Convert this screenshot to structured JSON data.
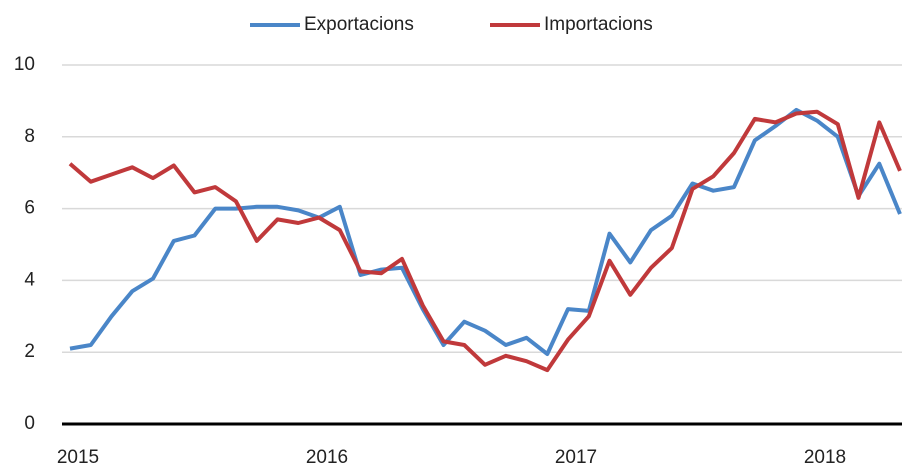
{
  "chart_data": {
    "type": "line",
    "categories": [
      "2015",
      null,
      null,
      null,
      null,
      null,
      null,
      null,
      null,
      null,
      null,
      null,
      "2016",
      null,
      null,
      null,
      null,
      null,
      null,
      null,
      null,
      null,
      null,
      null,
      "2017",
      null,
      null,
      null,
      null,
      null,
      null,
      null,
      null,
      null,
      null,
      null,
      "2018",
      null,
      null,
      null,
      null
    ],
    "series": [
      {
        "name": "Exportacions",
        "color": "#4a86c8",
        "values": [
          2.1,
          2.2,
          3.0,
          3.7,
          4.05,
          5.1,
          5.25,
          6.0,
          6.0,
          6.05,
          6.05,
          5.95,
          5.75,
          6.05,
          4.15,
          4.3,
          4.35,
          3.2,
          2.2,
          2.85,
          2.6,
          2.2,
          2.4,
          1.95,
          3.2,
          3.15,
          5.3,
          4.5,
          5.4,
          5.8,
          6.7,
          6.5,
          6.6,
          7.9,
          8.3,
          8.75,
          8.45,
          8.0,
          6.35,
          7.25,
          5.85
        ]
      },
      {
        "name": "Importacions",
        "color": "#c0393b",
        "values": [
          7.25,
          6.75,
          6.95,
          7.15,
          6.85,
          7.2,
          6.45,
          6.6,
          6.2,
          5.1,
          5.7,
          5.6,
          5.75,
          5.4,
          4.25,
          4.2,
          4.6,
          3.3,
          2.3,
          2.2,
          1.65,
          1.9,
          1.75,
          1.5,
          2.35,
          3.0,
          4.55,
          3.6,
          4.35,
          4.9,
          6.55,
          6.9,
          7.55,
          8.5,
          8.4,
          8.65,
          8.7,
          8.35,
          6.3,
          8.4,
          7.05
        ]
      }
    ],
    "ylim": [
      0,
      10
    ],
    "yticks": [
      0,
      2,
      4,
      6,
      8,
      10
    ],
    "grid": true,
    "legend": "top"
  }
}
